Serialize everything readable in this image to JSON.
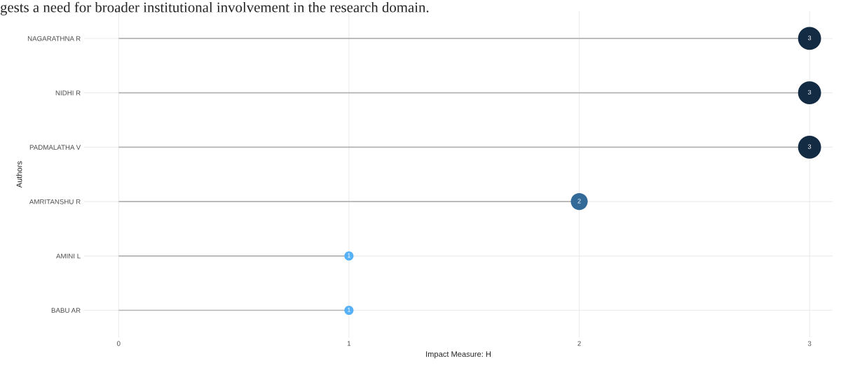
{
  "chart_data": {
    "type": "lollipop",
    "orientation": "horizontal",
    "categories": [
      "NAGARATHNA R",
      "NIDHI R",
      "PADMALATHA V",
      "AMRITANSHU R",
      "AMINI L",
      "BABU AR"
    ],
    "values": [
      3,
      3,
      3,
      2,
      1,
      1
    ],
    "colors": [
      "#132b43",
      "#132b43",
      "#132b43",
      "#336a98",
      "#56b1f7",
      "#56b1f7"
    ],
    "sizes": [
      1,
      1,
      1,
      0.54,
      0.16,
      0.16
    ],
    "data_labels": true,
    "xlabel": "Impact Measure: H",
    "ylabel": "Authors",
    "xlim": [
      -0.15,
      3.1
    ],
    "xticks": [
      0,
      1,
      2,
      3
    ],
    "grid": true,
    "annotations": [
      "gests a need for broader institutional involvement in the research domain."
    ]
  }
}
